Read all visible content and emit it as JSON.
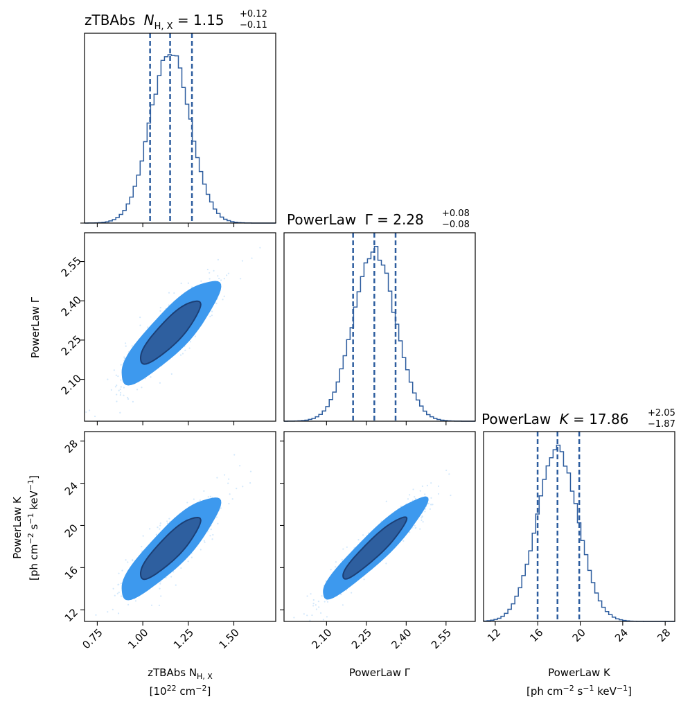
{
  "chart_data": {
    "type": "corner",
    "color": "#2c5c9e",
    "contour_colors": {
      "outer": "#3d99ee",
      "inner": "#2e5f9f",
      "points": "#d3e8fb"
    },
    "params": [
      {
        "id": "nh",
        "title_main": "zTBAbs",
        "title_sym": "N",
        "title_sub": "H, X",
        "title_eq": " = 1.15",
        "err_up": "+0.12",
        "err_dn": "−0.11",
        "median": 1.15,
        "q16": 1.04,
        "q84": 1.27,
        "sigma": 0.11,
        "range": [
          0.68,
          1.73
        ],
        "ticks": [
          0.75,
          1.0,
          1.25,
          1.5
        ],
        "tick_labels": [
          "0.75",
          "1.00",
          "1.25",
          "1.50"
        ],
        "label_line1": "zTBAbs N",
        "label_sub": "H, X",
        "label_line2": "[10",
        "label_line2_sup": "22",
        "label_line2_rest": " cm",
        "label_line2_sup2": "−2",
        "label_line2_end": "]"
      },
      {
        "id": "gamma",
        "title_main": "PowerLaw",
        "title_sym": "Γ",
        "title_sub": "",
        "title_eq": " = 2.28",
        "err_up": "+0.08",
        "err_dn": "−0.08",
        "median": 2.28,
        "q16": 2.2,
        "q84": 2.36,
        "sigma": 0.08,
        "range": [
          1.94,
          2.66
        ],
        "ticks": [
          2.1,
          2.25,
          2.4,
          2.55
        ],
        "tick_labels": [
          "2.10",
          "2.25",
          "2.40",
          "2.55"
        ],
        "label_line1": "PowerLaw Γ"
      },
      {
        "id": "k",
        "title_main": "PowerLaw",
        "title_sym": "K",
        "title_sub": "",
        "title_eq": " = 17.86",
        "err_up": "+2.05",
        "err_dn": "−1.87",
        "median": 17.86,
        "q16": 15.99,
        "q84": 19.91,
        "sigma": 1.95,
        "range": [
          10.9,
          28.9
        ],
        "ticks": [
          12,
          16,
          20,
          24,
          28
        ],
        "tick_labels": [
          "12",
          "16",
          "20",
          "24",
          "28"
        ],
        "label_line1": "PowerLaw K",
        "label_line2": "[ph cm",
        "label_line2_sup": "−2",
        "label_line2_rest": " s",
        "label_line2_sup2": "−1",
        "label_line2_rest2": " keV",
        "label_line2_sup3": "−1",
        "label_line2_end": "]"
      }
    ],
    "correlations": {
      "nh-gamma": 0.86,
      "nh-k": 0.87,
      "gamma-k": 0.93
    }
  }
}
